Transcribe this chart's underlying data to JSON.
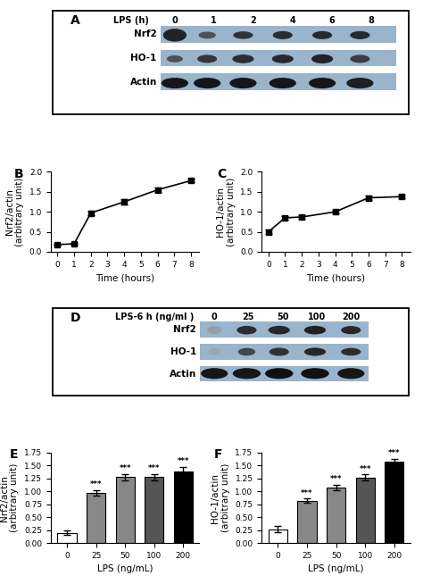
{
  "panel_A_label": "A",
  "panel_A_text_lps": "LPS (h)",
  "panel_A_timepoints": [
    "0",
    "1",
    "2",
    "4",
    "6",
    "8"
  ],
  "panel_A_labels": [
    "Nrf2",
    "HO-1",
    "Actin"
  ],
  "panel_A_bg": "#9ab4cb",
  "panel_B_label": "B",
  "panel_B_x": [
    0,
    1,
    2,
    4,
    6,
    8
  ],
  "panel_B_y": [
    0.18,
    0.2,
    0.97,
    1.25,
    1.55,
    1.78
  ],
  "panel_B_yerr": [
    0.03,
    0.03,
    0.05,
    0.06,
    0.06,
    0.05
  ],
  "panel_B_ylabel": "Nrf2/actin\n(arbitrary unit)",
  "panel_B_xlabel": "Time (hours)",
  "panel_B_ylim": [
    0.0,
    2.0
  ],
  "panel_B_yticks": [
    0.0,
    0.5,
    1.0,
    1.5,
    2.0
  ],
  "panel_C_label": "C",
  "panel_C_x": [
    0,
    1,
    2,
    4,
    6,
    8
  ],
  "panel_C_y": [
    0.5,
    0.85,
    0.87,
    1.0,
    1.35,
    1.38
  ],
  "panel_C_yerr": [
    0.06,
    0.04,
    0.04,
    0.04,
    0.05,
    0.05
  ],
  "panel_C_ylabel": "HO-1/actin\n(arbitrary unit)",
  "panel_C_xlabel": "Time (hours)",
  "panel_C_ylim": [
    0.0,
    2.0
  ],
  "panel_C_yticks": [
    0.0,
    0.5,
    1.0,
    1.5,
    2.0
  ],
  "panel_D_label": "D",
  "panel_D_text_lps": "LPS-6 h (ng/ml )",
  "panel_D_concentrations": [
    "0",
    "25",
    "50",
    "100",
    "200"
  ],
  "panel_D_labels": [
    "Nrf2",
    "HO-1",
    "Actin"
  ],
  "panel_D_bg": "#9ab4cb",
  "panel_E_label": "E",
  "panel_E_x": [
    0,
    25,
    50,
    100,
    200
  ],
  "panel_E_y": [
    0.2,
    0.97,
    1.28,
    1.28,
    1.38
  ],
  "panel_E_yerr": [
    0.04,
    0.05,
    0.06,
    0.06,
    0.1
  ],
  "panel_E_colors": [
    "white",
    "#888888",
    "#888888",
    "#555555",
    "black"
  ],
  "panel_E_ylabel": "Nrf2/actin\n(arbitrary unit)",
  "panel_E_xlabel": "LPS (ng/mL)",
  "panel_E_ylim": [
    0.0,
    1.75
  ],
  "panel_E_yticks": [
    0.0,
    0.25,
    0.5,
    0.75,
    1.0,
    1.25,
    1.5,
    1.75
  ],
  "panel_E_sig": [
    "***",
    "***",
    "***",
    "***"
  ],
  "panel_F_label": "F",
  "panel_F_x": [
    0,
    25,
    50,
    100,
    200
  ],
  "panel_F_y": [
    0.27,
    0.82,
    1.08,
    1.27,
    1.57
  ],
  "panel_F_yerr": [
    0.06,
    0.04,
    0.05,
    0.06,
    0.06
  ],
  "panel_F_colors": [
    "white",
    "#888888",
    "#888888",
    "#555555",
    "black"
  ],
  "panel_F_ylabel": "HO-1/actin\n(arbitrary unit)",
  "panel_F_xlabel": "LPS (ng/mL)",
  "panel_F_ylim": [
    0.0,
    1.75
  ],
  "panel_F_yticks": [
    0.0,
    0.25,
    0.5,
    0.75,
    1.0,
    1.25,
    1.5,
    1.75
  ],
  "panel_F_sig": [
    "***",
    "***",
    "***",
    "***"
  ],
  "line_color": "black",
  "marker": "s",
  "markersize": 4,
  "linewidth": 1.2,
  "bar_edgecolor": "black",
  "bar_width": 0.65,
  "capsize": 3,
  "errorbar_linewidth": 1.0,
  "fontsize_label": 7.5,
  "fontsize_tick": 6.5,
  "fontsize_panel": 10
}
